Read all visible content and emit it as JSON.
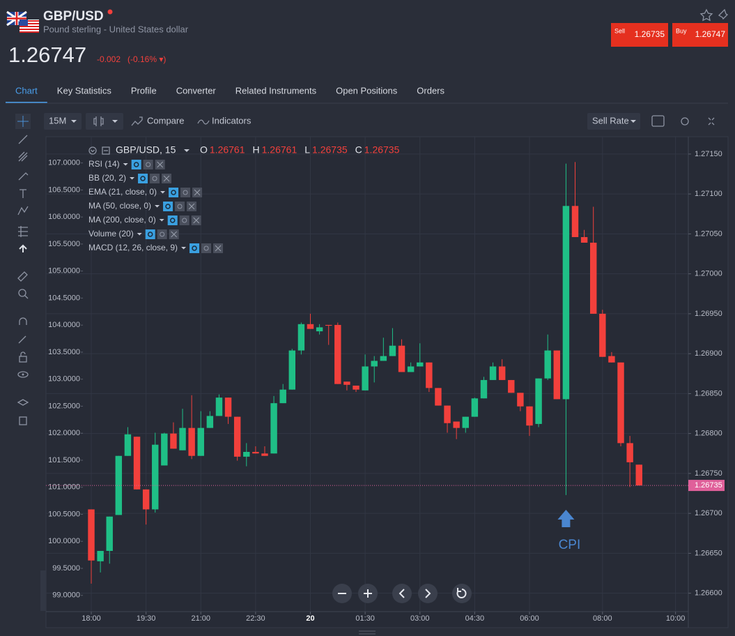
{
  "header": {
    "symbol": "GBP/USD",
    "description": "Pound sterling - United States dollar",
    "price": "1.26747",
    "change": "-0.002",
    "change_pct": "(-0.16% ▾)",
    "sell_label": "Sell",
    "sell_price": "1.26735",
    "buy_label": "Buy",
    "buy_price": "1.26747"
  },
  "tabs": [
    "Chart",
    "Key Statistics",
    "Profile",
    "Converter",
    "Related Instruments",
    "Open Positions",
    "Orders"
  ],
  "toolbar": {
    "interval": "15M",
    "compare": "Compare",
    "indicators": "Indicators",
    "rate": "Sell Rate"
  },
  "chart_data": {
    "type": "candlestick",
    "legend": {
      "symbol": "GBP/USD, 15",
      "ohlc": [
        {
          "label": "O",
          "value": 1.26761
        },
        {
          "label": "H",
          "value": 1.26761
        },
        {
          "label": "L",
          "value": 1.26735
        },
        {
          "label": "C",
          "value": 1.26735
        }
      ]
    },
    "indicators": [
      "RSI (14)",
      "BB (20, 2)",
      "EMA (21, close, 0)",
      "MA (50, close, 0)",
      "MA (200, close, 0)",
      "Volume (20)",
      "MACD (12, 26, close, 9)"
    ],
    "up_color": "#1fbf86",
    "down_color": "#f2403c",
    "open": [
      1.26705,
      1.2664,
      1.26653,
      1.26698,
      1.26772,
      1.26796,
      1.2673,
      1.26705,
      1.2676,
      1.268,
      1.26779,
      1.26807,
      1.26772,
      1.26807,
      1.26822,
      1.26845,
      1.26821,
      1.26771,
      1.26777,
      1.26775,
      1.26775,
      1.26838,
      1.26855,
      1.26904,
      1.26937,
      1.26928,
      1.26936,
      1.26936,
      1.26865,
      1.2686,
      1.26854,
      1.26884,
      1.26891,
      1.26897,
      1.2691,
      1.26877,
      1.26884,
      1.26889,
      1.26857,
      1.26835,
      1.26815,
      1.26807,
      1.26821,
      1.26844,
      1.26867,
      1.26884,
      1.26867,
      1.26851,
      1.26834,
      1.26812,
      1.26869,
      1.26904,
      1.26843,
      1.27085,
      1.27046,
      1.27039,
      1.2695,
      1.26897,
      1.26889,
      1.26788,
      1.26761
    ],
    "high": [
      1.26705,
      1.26653,
      1.26696,
      1.26772,
      1.26808,
      1.26796,
      1.2673,
      1.26801,
      1.26801,
      1.26814,
      1.26831,
      1.26848,
      1.26828,
      1.26828,
      1.26849,
      1.26845,
      1.26821,
      1.26788,
      1.26784,
      1.26784,
      1.26847,
      1.26862,
      1.26906,
      1.26939,
      1.2695,
      1.26937,
      1.26936,
      1.26939,
      1.26865,
      1.2686,
      1.26899,
      1.26897,
      1.2692,
      1.26932,
      1.26918,
      1.26889,
      1.26913,
      1.26889,
      1.26857,
      1.26835,
      1.26815,
      1.26821,
      1.26845,
      1.26871,
      1.26889,
      1.26893,
      1.26867,
      1.26851,
      1.26834,
      1.26869,
      1.26924,
      1.26904,
      1.27138,
      1.2714,
      1.27055,
      1.27084,
      1.26955,
      1.26902,
      1.26889,
      1.26797,
      1.26761
    ],
    "low": [
      1.26612,
      1.26626,
      1.26637,
      1.26698,
      1.26772,
      1.2673,
      1.26686,
      1.26701,
      1.2676,
      1.26781,
      1.26779,
      1.26768,
      1.26772,
      1.26807,
      1.26822,
      1.26812,
      1.26766,
      1.26759,
      1.26775,
      1.26772,
      1.26775,
      1.26838,
      1.26855,
      1.26899,
      1.26931,
      1.26924,
      1.26911,
      1.26862,
      1.26854,
      1.26852,
      1.26854,
      1.26864,
      1.26891,
      1.26897,
      1.26877,
      1.26877,
      1.26884,
      1.26852,
      1.26835,
      1.26801,
      1.26793,
      1.26801,
      1.26821,
      1.26844,
      1.26867,
      1.26867,
      1.26851,
      1.26828,
      1.26797,
      1.26808,
      1.26867,
      1.26843,
      1.26723,
      1.27046,
      1.27039,
      1.2695,
      1.26896,
      1.26889,
      1.26784,
      1.26733,
      1.26735
    ],
    "close": [
      1.26641,
      1.26653,
      1.26696,
      1.26772,
      1.26799,
      1.2673,
      1.26705,
      1.26786,
      1.268,
      1.26781,
      1.26807,
      1.26772,
      1.26807,
      1.26822,
      1.26845,
      1.26821,
      1.26771,
      1.26777,
      1.26775,
      1.26772,
      1.26838,
      1.26855,
      1.26904,
      1.26937,
      1.26931,
      1.26933,
      1.26935,
      1.26862,
      1.26861,
      1.26855,
      1.26884,
      1.26891,
      1.26897,
      1.2691,
      1.26877,
      1.26884,
      1.26889,
      1.26857,
      1.26835,
      1.26813,
      1.26807,
      1.26821,
      1.26844,
      1.26867,
      1.26884,
      1.26867,
      1.26851,
      1.26834,
      1.2681,
      1.26869,
      1.26904,
      1.26843,
      1.27085,
      1.27046,
      1.27039,
      1.2695,
      1.26896,
      1.26889,
      1.26788,
      1.26764,
      1.26735
    ],
    "xlim": [
      -0.84,
      65.4
    ],
    "xticks": [
      {
        "value": 0,
        "label": "18:00"
      },
      {
        "value": 6,
        "label": "19:30"
      },
      {
        "value": 12,
        "label": "21:00"
      },
      {
        "value": 18,
        "label": "22:30"
      },
      {
        "value": 24,
        "label": "20"
      },
      {
        "value": 30,
        "label": "01:30"
      },
      {
        "value": 36,
        "label": "03:00"
      },
      {
        "value": 42,
        "label": "04:30"
      },
      {
        "value": 48,
        "label": "06:00"
      },
      {
        "value": 56,
        "label": "08:00"
      },
      {
        "value": 64,
        "label": "10:00"
      }
    ],
    "ylim": [
      1.26577,
      1.2717
    ],
    "yticks": [
      {
        "value": 1.2715,
        "label": "1.27150"
      },
      {
        "value": 1.271,
        "label": "1.27100"
      },
      {
        "value": 1.2705,
        "label": "1.27050"
      },
      {
        "value": 1.27,
        "label": "1.27000"
      },
      {
        "value": 1.2695,
        "label": "1.26950"
      },
      {
        "value": 1.269,
        "label": "1.26900"
      },
      {
        "value": 1.2685,
        "label": "1.26850"
      },
      {
        "value": 1.268,
        "label": "1.26800"
      },
      {
        "value": 1.2675,
        "label": "1.26750"
      },
      {
        "value": 1.267,
        "label": "1.26700"
      },
      {
        "value": 1.2665,
        "label": "1.26650"
      },
      {
        "value": 1.266,
        "label": "1.26600"
      }
    ],
    "y2lim": [
      98.7,
      107.46
    ],
    "y2ticks": [
      {
        "value": 107,
        "label": "107.0000"
      },
      {
        "value": 106.5,
        "label": "106.5000"
      },
      {
        "value": 106,
        "label": "106.0000"
      },
      {
        "value": 105.5,
        "label": "105.5000"
      },
      {
        "value": 105,
        "label": "105.0000"
      },
      {
        "value": 104.5,
        "label": "104.5000"
      },
      {
        "value": 104,
        "label": "104.0000"
      },
      {
        "value": 103.5,
        "label": "103.5000"
      },
      {
        "value": 103,
        "label": "103.0000"
      },
      {
        "value": 102.5,
        "label": "102.5000"
      },
      {
        "value": 102,
        "label": "102.0000"
      },
      {
        "value": 101.5,
        "label": "101.5000"
      },
      {
        "value": 101,
        "label": "101.0000"
      },
      {
        "value": 100.5,
        "label": "100.5000"
      },
      {
        "value": 100,
        "label": "100.0000"
      },
      {
        "value": 99.5,
        "label": "99.5000"
      },
      {
        "value": 99,
        "label": "99.0000"
      }
    ],
    "price_line": 1.26735,
    "grid": true,
    "annotation": {
      "text": "CPI",
      "x": 52
    }
  }
}
